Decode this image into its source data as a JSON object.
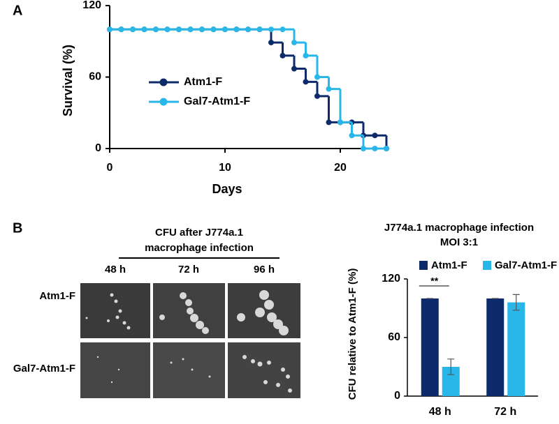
{
  "panel_labels": [
    "A",
    "B"
  ],
  "chart_data": [
    {
      "type": "line",
      "step": true,
      "x": [
        0,
        1,
        2,
        3,
        4,
        5,
        6,
        7,
        8,
        9,
        10,
        11,
        12,
        13,
        14,
        15,
        16,
        17,
        18,
        19,
        20,
        21,
        22,
        23,
        24
      ],
      "xlim": [
        0,
        24
      ],
      "xticks": [
        0,
        10,
        20
      ],
      "x_label": "Days",
      "ylim": [
        0,
        120
      ],
      "yticks": [
        0,
        60,
        120
      ],
      "y_label": "Survival (%)",
      "series": [
        {
          "name": "Atm1-F",
          "color": "#0d2a6b",
          "values": [
            100,
            100,
            100,
            100,
            100,
            100,
            100,
            100,
            100,
            100,
            100,
            100,
            100,
            100,
            89,
            78,
            67,
            56,
            44,
            22,
            22,
            22,
            11,
            11,
            0
          ]
        },
        {
          "name": "Gal7-Atm1-F",
          "color": "#29b6e8",
          "values": [
            100,
            100,
            100,
            100,
            100,
            100,
            100,
            100,
            100,
            100,
            100,
            100,
            100,
            100,
            100,
            100,
            89,
            78,
            60,
            50,
            22,
            11,
            0,
            0,
            0
          ]
        }
      ]
    },
    {
      "type": "bar",
      "title": [
        "J774a.1 macrophage infection",
        "MOI 3:1"
      ],
      "y_label": "CFU relative to Atm1-F (%)",
      "categories": [
        "48 h",
        "72 h"
      ],
      "ylim": [
        0,
        120
      ],
      "yticks": [
        0,
        60,
        120
      ],
      "annotation": "**",
      "series": [
        {
          "name": "Atm1-F",
          "color": "#0d2a6b",
          "values": [
            100,
            100
          ],
          "errors": [
            0,
            0
          ]
        },
        {
          "name": "Gal7-Atm1-F",
          "color": "#29b6e8",
          "values": [
            30,
            96
          ],
          "errors": [
            8,
            8
          ]
        }
      ]
    }
  ],
  "image_panel": {
    "title": [
      "CFU after J774a.1",
      "macrophage infection"
    ],
    "columns": [
      "48 h",
      "72 h",
      "96 h"
    ],
    "rows": [
      "Atm1-F",
      "Gal7-Atm1-F"
    ]
  }
}
